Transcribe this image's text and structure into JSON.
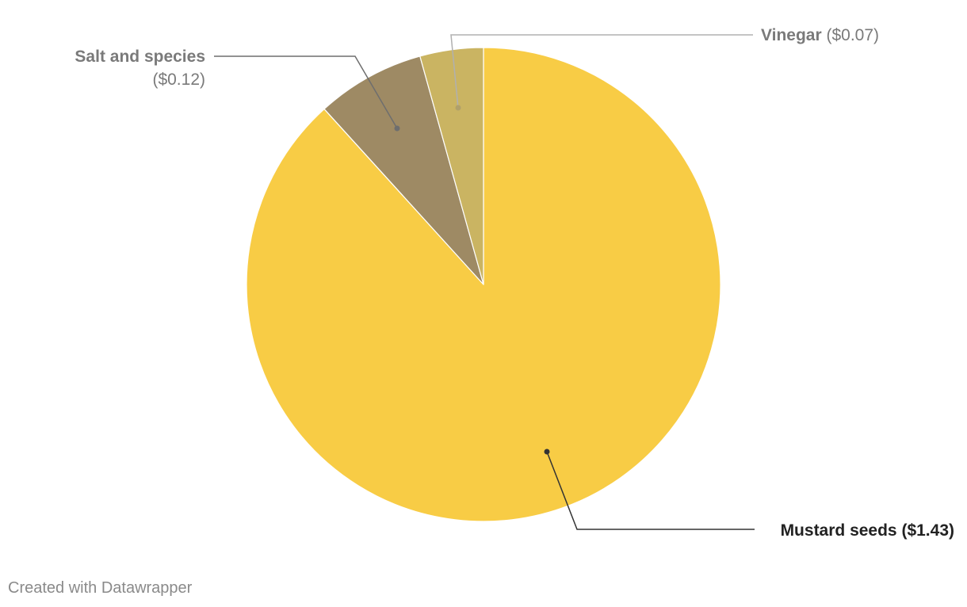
{
  "chart_data": {
    "type": "pie",
    "title": "",
    "slices": [
      {
        "label": "Mustard seeds",
        "value_label": "($1.43)",
        "value": 1.43,
        "color": "#f8cc45",
        "label_color": "#222222"
      },
      {
        "label": "Salt and species",
        "value_label": "($0.12)",
        "value": 0.12,
        "color": "#9e8a64",
        "label_color": "#7a7a7a"
      },
      {
        "label": "Vinegar",
        "value_label": "($0.07)",
        "value": 0.07,
        "color": "#cab462",
        "label_color": "#7a7a7a"
      }
    ],
    "start_angle": "12 o'clock",
    "direction": "counter-clockwise"
  },
  "footer": {
    "credit": "Created with Datawrapper"
  }
}
